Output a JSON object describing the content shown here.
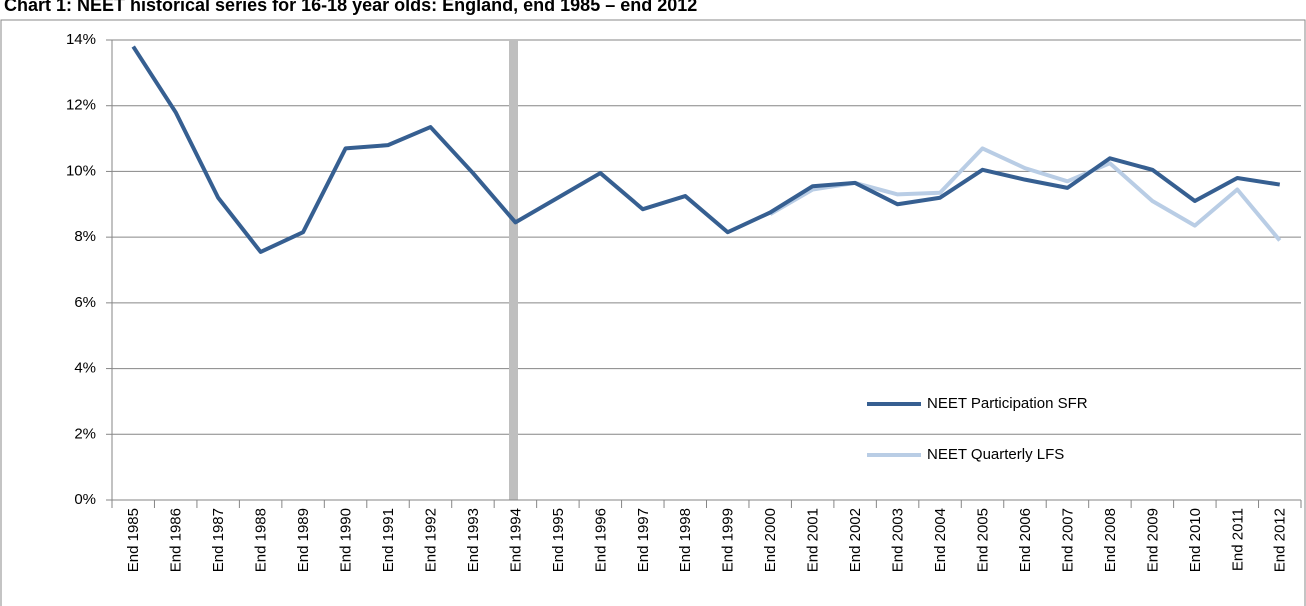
{
  "chart_data": {
    "type": "line",
    "title": "Chart 1: NEET historical series for 16-18 year olds: England, end 1985 – end 2012",
    "categories": [
      "End 1985",
      "End 1986",
      "End 1987",
      "End 1988",
      "End 1989",
      "End 1990",
      "End 1991",
      "End 1992",
      "End 1993",
      "End 1994",
      "End 1995",
      "End 1996",
      "End 1997",
      "End 1998",
      "End 1999",
      "End 2000",
      "End 2001",
      "End 2002",
      "End 2003",
      "End 2004",
      "End 2005",
      "End 2006",
      "End 2007",
      "End 2008",
      "End 2009",
      "End 2010",
      "End 2011",
      "End 2012"
    ],
    "series": [
      {
        "name": "NEET Participation SFR",
        "color": "#365f91",
        "values": [
          13.8,
          11.8,
          9.2,
          7.55,
          8.15,
          10.7,
          10.8,
          11.35,
          9.95,
          8.45,
          9.2,
          9.95,
          8.85,
          9.25,
          8.15,
          8.75,
          9.55,
          9.65,
          9.0,
          9.2,
          10.05,
          9.75,
          9.5,
          10.4,
          10.05,
          9.1,
          9.8,
          9.6
        ]
      },
      {
        "name": "NEET Quarterly LFS",
        "color": "#b9cde5",
        "values": [
          null,
          null,
          null,
          null,
          null,
          null,
          null,
          null,
          null,
          null,
          null,
          null,
          null,
          null,
          null,
          8.7,
          9.45,
          9.65,
          9.3,
          9.35,
          10.7,
          10.1,
          9.7,
          10.25,
          9.1,
          8.35,
          9.45,
          7.9
        ]
      }
    ],
    "ylim": [
      0,
      14
    ],
    "yticks": [
      {
        "value": 0,
        "label": "0%"
      },
      {
        "value": 2,
        "label": "2%"
      },
      {
        "value": 4,
        "label": "4%"
      },
      {
        "value": 6,
        "label": "6%"
      },
      {
        "value": 8,
        "label": "8%"
      },
      {
        "value": 10,
        "label": "10%"
      },
      {
        "value": 12,
        "label": "12%"
      },
      {
        "value": 14,
        "label": "14%"
      }
    ],
    "grid": true
  }
}
